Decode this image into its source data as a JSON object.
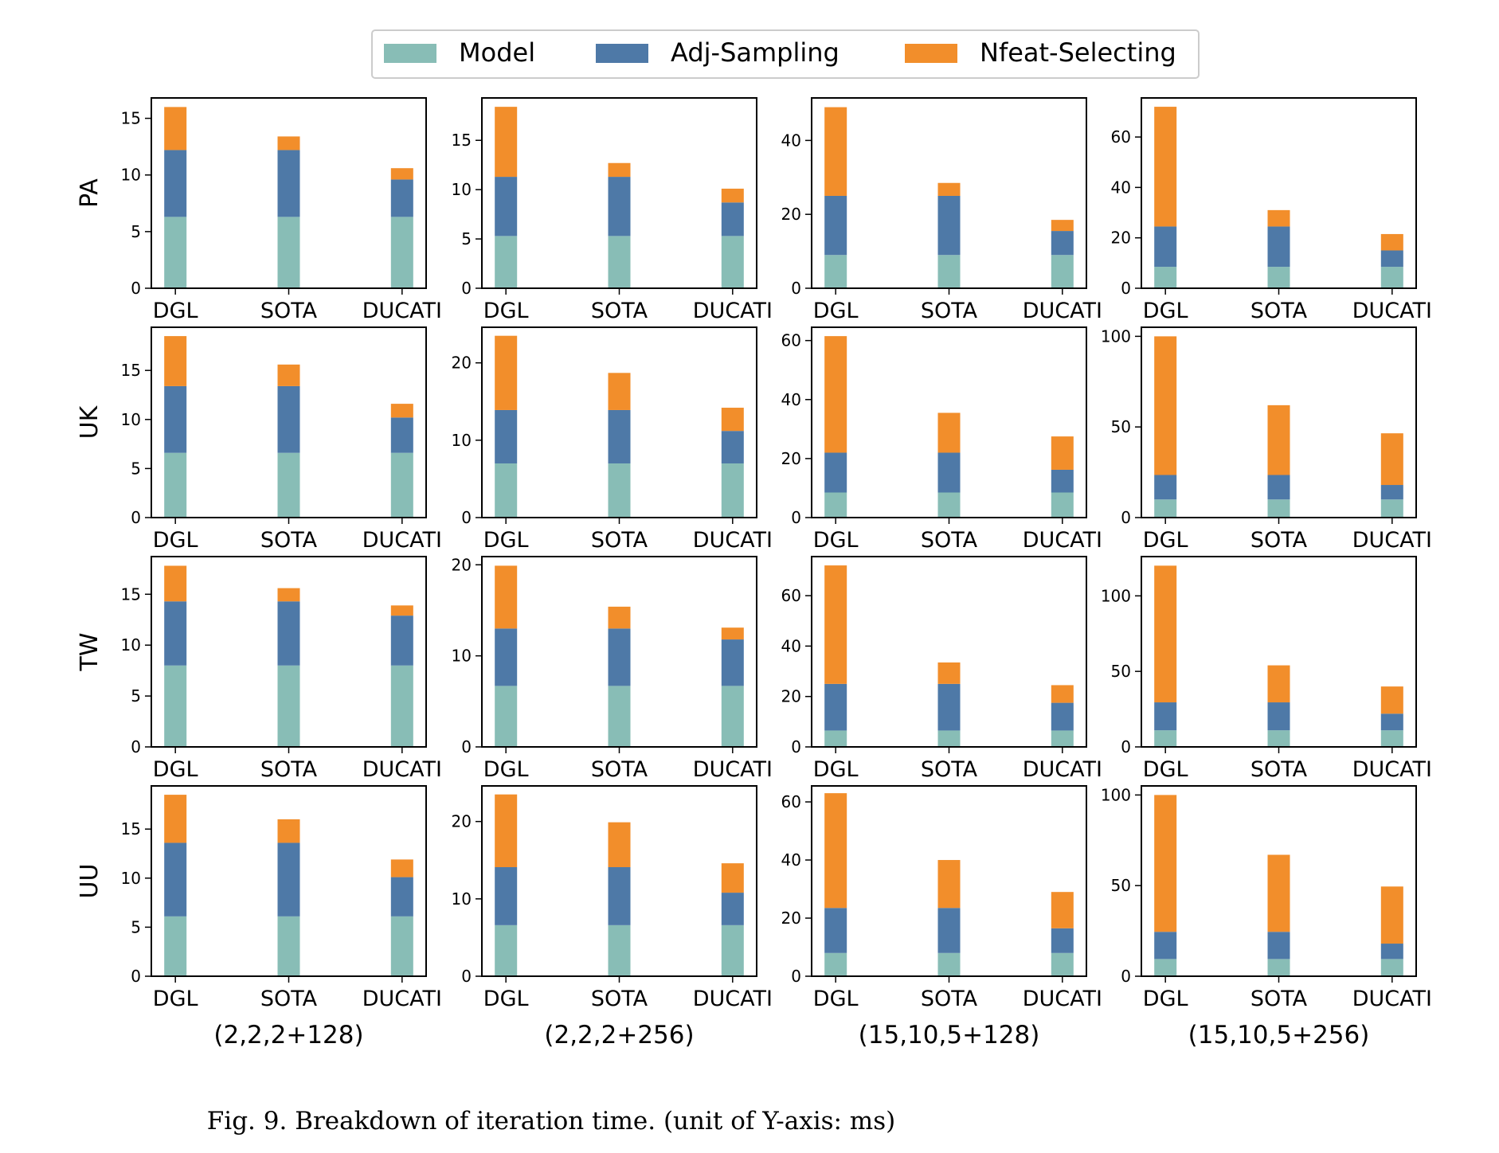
{
  "caption": "Fig. 9.  Breakdown of iteration time. (unit of Y-axis: ms)",
  "colors": {
    "Model": "#88bdb6",
    "Adj-Sampling": "#4e79a7",
    "Nfeat-Selecting": "#f28e2b"
  },
  "chart_data": {
    "type": "bar",
    "stacked": true,
    "categories": [
      "DGL",
      "SOTA",
      "DUCATI"
    ],
    "series_names": [
      "Model",
      "Adj-Sampling",
      "Nfeat-Selecting"
    ],
    "legend": {
      "position": "top-center",
      "entries": [
        "Model",
        "Adj-Sampling",
        "Nfeat-Selecting"
      ]
    },
    "rows": [
      "PA",
      "UK",
      "TW",
      "UU"
    ],
    "columns": [
      "(2,2,2+128)",
      "(2,2,2+256)",
      "(15,10,5+128)",
      "(15,10,5+256)"
    ],
    "grid": false,
    "panels": [
      {
        "row": "PA",
        "column": "(2,2,2+128)",
        "ylim": [
          0,
          16.8
        ],
        "yticks": [
          0,
          5,
          10,
          15
        ],
        "Model": [
          6.3,
          6.3,
          6.3
        ],
        "Adj-Sampling": [
          5.9,
          5.9,
          3.3
        ],
        "Nfeat-Selecting": [
          3.8,
          1.2,
          1.0
        ]
      },
      {
        "row": "PA",
        "column": "(2,2,2+256)",
        "ylim": [
          0,
          19.3
        ],
        "yticks": [
          0,
          5,
          10,
          15
        ],
        "Model": [
          5.3,
          5.3,
          5.3
        ],
        "Adj-Sampling": [
          6.0,
          6.0,
          3.4
        ],
        "Nfeat-Selecting": [
          7.1,
          1.4,
          1.4
        ]
      },
      {
        "row": "PA",
        "column": "(15,10,5+128)",
        "ylim": [
          0,
          51.5
        ],
        "yticks": [
          0,
          20,
          40
        ],
        "Model": [
          9.0,
          9.0,
          9.0
        ],
        "Adj-Sampling": [
          16.0,
          16.0,
          6.5
        ],
        "Nfeat-Selecting": [
          24.0,
          3.5,
          3.0
        ]
      },
      {
        "row": "PA",
        "column": "(15,10,5+256)",
        "ylim": [
          0,
          75.5
        ],
        "yticks": [
          0,
          20,
          40,
          60
        ],
        "Model": [
          8.5,
          8.5,
          8.5
        ],
        "Adj-Sampling": [
          16.0,
          16.0,
          6.5
        ],
        "Nfeat-Selecting": [
          47.5,
          6.5,
          6.5
        ]
      },
      {
        "row": "UK",
        "column": "(2,2,2+128)",
        "ylim": [
          0,
          19.4
        ],
        "yticks": [
          0,
          5,
          10,
          15
        ],
        "Model": [
          6.6,
          6.6,
          6.6
        ],
        "Adj-Sampling": [
          6.8,
          6.8,
          3.6
        ],
        "Nfeat-Selecting": [
          5.1,
          2.2,
          1.4
        ]
      },
      {
        "row": "UK",
        "column": "(2,2,2+256)",
        "ylim": [
          0,
          24.6
        ],
        "yticks": [
          0,
          10,
          20
        ],
        "Model": [
          7.0,
          7.0,
          7.0
        ],
        "Adj-Sampling": [
          6.9,
          6.9,
          4.2
        ],
        "Nfeat-Selecting": [
          9.6,
          4.8,
          3.0
        ]
      },
      {
        "row": "UK",
        "column": "(15,10,5+128)",
        "ylim": [
          0,
          64.5
        ],
        "yticks": [
          0,
          20,
          40,
          60
        ],
        "Model": [
          8.5,
          8.5,
          8.5
        ],
        "Adj-Sampling": [
          13.5,
          13.5,
          7.7
        ],
        "Nfeat-Selecting": [
          39.5,
          13.5,
          11.3
        ]
      },
      {
        "row": "UK",
        "column": "(15,10,5+256)",
        "ylim": [
          0,
          105
        ],
        "yticks": [
          0,
          50,
          100
        ],
        "Model": [
          10.0,
          10.0,
          10.0
        ],
        "Adj-Sampling": [
          13.5,
          13.5,
          8.0
        ],
        "Nfeat-Selecting": [
          76.5,
          38.5,
          28.5
        ]
      },
      {
        "row": "TW",
        "column": "(2,2,2+128)",
        "ylim": [
          0,
          18.7
        ],
        "yticks": [
          0,
          5,
          10,
          15
        ],
        "Model": [
          8.0,
          8.0,
          8.0
        ],
        "Adj-Sampling": [
          6.3,
          6.3,
          4.9
        ],
        "Nfeat-Selecting": [
          3.5,
          1.3,
          1.0
        ]
      },
      {
        "row": "TW",
        "column": "(2,2,2+256)",
        "ylim": [
          0,
          20.9
        ],
        "yticks": [
          0,
          10,
          20
        ],
        "Model": [
          6.7,
          6.7,
          6.7
        ],
        "Adj-Sampling": [
          6.3,
          6.3,
          5.1
        ],
        "Nfeat-Selecting": [
          6.9,
          2.4,
          1.3
        ]
      },
      {
        "row": "TW",
        "column": "(15,10,5+128)",
        "ylim": [
          0,
          75.5
        ],
        "yticks": [
          0,
          20,
          40,
          60
        ],
        "Model": [
          6.5,
          6.5,
          6.5
        ],
        "Adj-Sampling": [
          18.5,
          18.5,
          11.0
        ],
        "Nfeat-Selecting": [
          47.0,
          8.5,
          7.0
        ]
      },
      {
        "row": "TW",
        "column": "(15,10,5+256)",
        "ylim": [
          0,
          126
        ],
        "yticks": [
          0,
          50,
          100
        ],
        "Model": [
          11.0,
          11.0,
          11.0
        ],
        "Adj-Sampling": [
          18.5,
          18.5,
          11.0
        ],
        "Nfeat-Selecting": [
          90.5,
          24.5,
          18.0
        ]
      },
      {
        "row": "UU",
        "column": "(2,2,2+128)",
        "ylim": [
          0,
          19.4
        ],
        "yticks": [
          0,
          5,
          10,
          15
        ],
        "Model": [
          6.1,
          6.1,
          6.1
        ],
        "Adj-Sampling": [
          7.5,
          7.5,
          4.0
        ],
        "Nfeat-Selecting": [
          4.9,
          2.4,
          1.8
        ]
      },
      {
        "row": "UU",
        "column": "(2,2,2+256)",
        "ylim": [
          0,
          24.6
        ],
        "yticks": [
          0,
          10,
          20
        ],
        "Model": [
          6.6,
          6.6,
          6.6
        ],
        "Adj-Sampling": [
          7.5,
          7.5,
          4.2
        ],
        "Nfeat-Selecting": [
          9.4,
          5.8,
          3.8
        ]
      },
      {
        "row": "UU",
        "column": "(15,10,5+128)",
        "ylim": [
          0,
          65.5
        ],
        "yticks": [
          0,
          20,
          40,
          60
        ],
        "Model": [
          8.0,
          8.0,
          8.0
        ],
        "Adj-Sampling": [
          15.5,
          15.5,
          8.5
        ],
        "Nfeat-Selecting": [
          39.5,
          16.5,
          12.5
        ]
      },
      {
        "row": "UU",
        "column": "(15,10,5+256)",
        "ylim": [
          0,
          105
        ],
        "yticks": [
          0,
          50,
          100
        ],
        "Model": [
          9.5,
          9.5,
          9.5
        ],
        "Adj-Sampling": [
          15.0,
          15.0,
          8.5
        ],
        "Nfeat-Selecting": [
          75.5,
          42.5,
          31.5
        ]
      }
    ]
  }
}
